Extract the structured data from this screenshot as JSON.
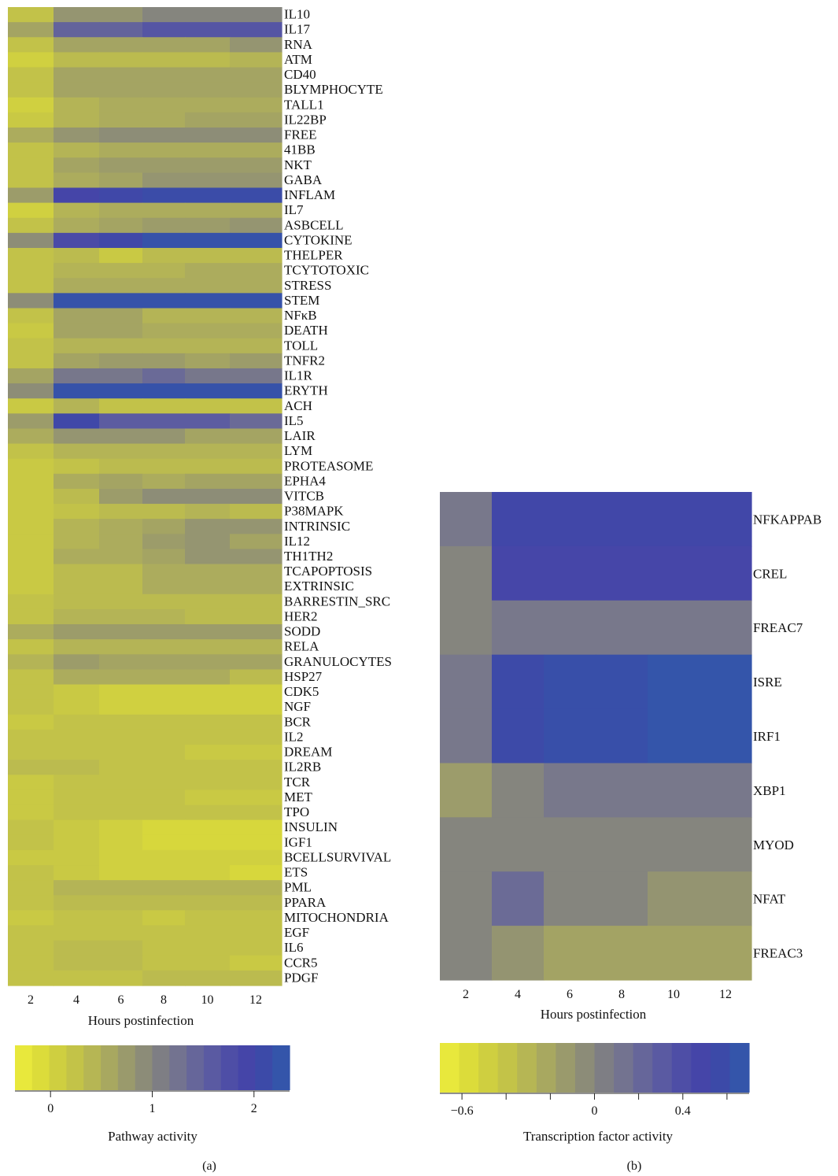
{
  "chart_data": [
    {
      "type": "heatmap",
      "panel_label": "(a)",
      "xlabel": "Hours postinfection",
      "x": [
        "2",
        "4",
        "6",
        "8",
        "10",
        "12"
      ],
      "colorbar": {
        "label": "Pathway activity",
        "range": [
          -0.35,
          2.35
        ],
        "ticks": [
          "0",
          "1",
          "2"
        ],
        "tick_values": [
          0,
          1,
          2
        ],
        "colors": [
          "#e8e83c",
          "#dcdc3a",
          "#cfcf40",
          "#c3c348",
          "#b6b654",
          "#a8a860",
          "#9a9a6c",
          "#8c8c78",
          "#7e7e84",
          "#737390",
          "#66669a",
          "#5a5aa2",
          "#4e4ea6",
          "#4545a8",
          "#3c4aa8",
          "#3455aa"
        ]
      },
      "rows": [
        {
          "name": "IL10",
          "values": [
            0.2,
            0.8,
            0.8,
            1.0,
            1.0,
            1.0
          ]
        },
        {
          "name": "IL17",
          "values": [
            0.6,
            1.5,
            1.5,
            1.7,
            1.7,
            1.7
          ]
        },
        {
          "name": "RNA",
          "values": [
            0.2,
            0.6,
            0.6,
            0.6,
            0.6,
            0.8
          ]
        },
        {
          "name": "ATM",
          "values": [
            0.0,
            0.3,
            0.3,
            0.3,
            0.3,
            0.4
          ]
        },
        {
          "name": "CD40",
          "values": [
            0.2,
            0.6,
            0.6,
            0.6,
            0.6,
            0.6
          ]
        },
        {
          "name": "BLYMPHOCYTE",
          "values": [
            0.2,
            0.6,
            0.6,
            0.6,
            0.6,
            0.6
          ]
        },
        {
          "name": "TALL1",
          "values": [
            0.0,
            0.4,
            0.5,
            0.5,
            0.5,
            0.5
          ]
        },
        {
          "name": "IL22BP",
          "values": [
            0.1,
            0.4,
            0.5,
            0.5,
            0.6,
            0.6
          ]
        },
        {
          "name": "FREE",
          "values": [
            0.5,
            0.8,
            0.9,
            0.9,
            0.9,
            0.9
          ]
        },
        {
          "name": "41BB",
          "values": [
            0.2,
            0.4,
            0.5,
            0.5,
            0.5,
            0.5
          ]
        },
        {
          "name": "NKT",
          "values": [
            0.2,
            0.6,
            0.7,
            0.7,
            0.7,
            0.7
          ]
        },
        {
          "name": "GABA",
          "values": [
            0.2,
            0.5,
            0.6,
            0.8,
            0.8,
            0.8
          ]
        },
        {
          "name": "INFLAM",
          "values": [
            0.7,
            2.0,
            2.1,
            2.2,
            2.2,
            2.2
          ]
        },
        {
          "name": "IL7",
          "values": [
            0.0,
            0.4,
            0.5,
            0.5,
            0.5,
            0.5
          ]
        },
        {
          "name": "ASBCELL",
          "values": [
            0.2,
            0.5,
            0.6,
            0.7,
            0.7,
            0.8
          ]
        },
        {
          "name": "CYTOKINE",
          "values": [
            0.9,
            1.9,
            2.1,
            2.3,
            2.3,
            2.3
          ]
        },
        {
          "name": "THELPER",
          "values": [
            0.2,
            0.3,
            0.1,
            0.3,
            0.3,
            0.3
          ]
        },
        {
          "name": "TCYTOTOXIC",
          "values": [
            0.2,
            0.4,
            0.4,
            0.4,
            0.5,
            0.5
          ]
        },
        {
          "name": "STRESS",
          "values": [
            0.2,
            0.5,
            0.5,
            0.5,
            0.5,
            0.5
          ]
        },
        {
          "name": "STEM",
          "values": [
            0.9,
            2.3,
            2.3,
            2.3,
            2.3,
            2.3
          ]
        },
        {
          "name": "NFκB",
          "values": [
            0.2,
            0.6,
            0.6,
            0.4,
            0.4,
            0.4
          ]
        },
        {
          "name": "DEATH",
          "values": [
            0.1,
            0.6,
            0.6,
            0.5,
            0.5,
            0.5
          ]
        },
        {
          "name": "TOLL",
          "values": [
            0.2,
            0.4,
            0.4,
            0.4,
            0.4,
            0.4
          ]
        },
        {
          "name": "TNFR2",
          "values": [
            0.2,
            0.6,
            0.7,
            0.7,
            0.6,
            0.7
          ]
        },
        {
          "name": "IL1R",
          "values": [
            0.6,
            1.2,
            1.2,
            1.4,
            1.2,
            1.2
          ]
        },
        {
          "name": "ERYTH",
          "values": [
            0.9,
            2.3,
            2.3,
            2.3,
            2.3,
            2.3
          ]
        },
        {
          "name": "ACH",
          "values": [
            0.1,
            0.4,
            0.2,
            0.2,
            0.2,
            0.2
          ]
        },
        {
          "name": "IL5",
          "values": [
            0.7,
            2.1,
            1.6,
            1.6,
            1.6,
            1.4
          ]
        },
        {
          "name": "LAIR",
          "values": [
            0.5,
            0.8,
            0.8,
            0.8,
            0.6,
            0.6
          ]
        },
        {
          "name": "LYM",
          "values": [
            0.2,
            0.4,
            0.4,
            0.4,
            0.4,
            0.4
          ]
        },
        {
          "name": "PROTEASOME",
          "values": [
            0.1,
            0.2,
            0.3,
            0.3,
            0.3,
            0.3
          ]
        },
        {
          "name": "EPHA4",
          "values": [
            0.1,
            0.5,
            0.6,
            0.5,
            0.6,
            0.6
          ]
        },
        {
          "name": "VITCB",
          "values": [
            0.1,
            0.3,
            0.7,
            0.9,
            0.9,
            0.9
          ]
        },
        {
          "name": "P38MAPK",
          "values": [
            0.1,
            0.2,
            0.3,
            0.3,
            0.4,
            0.3
          ]
        },
        {
          "name": "INTRINSIC",
          "values": [
            0.1,
            0.4,
            0.5,
            0.6,
            0.8,
            0.8
          ]
        },
        {
          "name": "IL12",
          "values": [
            0.1,
            0.4,
            0.5,
            0.7,
            0.8,
            0.6
          ]
        },
        {
          "name": "TH1TH2",
          "values": [
            0.1,
            0.5,
            0.5,
            0.6,
            0.8,
            0.8
          ]
        },
        {
          "name": "TCAPOPTOSIS",
          "values": [
            0.1,
            0.3,
            0.3,
            0.5,
            0.5,
            0.5
          ]
        },
        {
          "name": "EXTRINSIC",
          "values": [
            0.1,
            0.3,
            0.3,
            0.5,
            0.5,
            0.5
          ]
        },
        {
          "name": "BARRESTIN_SRC",
          "values": [
            0.2,
            0.3,
            0.3,
            0.3,
            0.3,
            0.3
          ]
        },
        {
          "name": "HER2",
          "values": [
            0.2,
            0.4,
            0.4,
            0.4,
            0.3,
            0.3
          ]
        },
        {
          "name": "SODD",
          "values": [
            0.5,
            0.7,
            0.7,
            0.7,
            0.7,
            0.7
          ]
        },
        {
          "name": "RELA",
          "values": [
            0.2,
            0.4,
            0.4,
            0.4,
            0.4,
            0.4
          ]
        },
        {
          "name": "GRANULOCYTES",
          "values": [
            0.4,
            0.7,
            0.6,
            0.6,
            0.6,
            0.6
          ]
        },
        {
          "name": "HSP27",
          "values": [
            0.2,
            0.5,
            0.5,
            0.5,
            0.5,
            0.3
          ]
        },
        {
          "name": "CDK5",
          "values": [
            0.2,
            0.1,
            0.0,
            0.0,
            0.0,
            0.0
          ]
        },
        {
          "name": "NGF",
          "values": [
            0.2,
            0.1,
            0.0,
            0.0,
            0.0,
            0.0
          ]
        },
        {
          "name": "BCR",
          "values": [
            0.1,
            0.2,
            0.2,
            0.2,
            0.2,
            0.2
          ]
        },
        {
          "name": "IL2",
          "values": [
            0.2,
            0.2,
            0.2,
            0.2,
            0.2,
            0.2
          ]
        },
        {
          "name": "DREAM",
          "values": [
            0.2,
            0.2,
            0.2,
            0.2,
            0.1,
            0.1
          ]
        },
        {
          "name": "IL2RB",
          "values": [
            0.3,
            0.3,
            0.2,
            0.2,
            0.2,
            0.2
          ]
        },
        {
          "name": "TCR",
          "values": [
            0.1,
            0.2,
            0.2,
            0.2,
            0.2,
            0.2
          ]
        },
        {
          "name": "MET",
          "values": [
            0.1,
            0.2,
            0.2,
            0.2,
            0.1,
            0.1
          ]
        },
        {
          "name": "TPO",
          "values": [
            0.1,
            0.2,
            0.2,
            0.2,
            0.2,
            0.2
          ]
        },
        {
          "name": "INSULIN",
          "values": [
            0.2,
            0.1,
            0.0,
            -0.1,
            -0.1,
            -0.1
          ]
        },
        {
          "name": "IGF1",
          "values": [
            0.2,
            0.1,
            0.0,
            -0.1,
            -0.1,
            -0.1
          ]
        },
        {
          "name": "BCELLSURVIVAL",
          "values": [
            0.1,
            0.1,
            0.0,
            0.0,
            0.0,
            0.0
          ]
        },
        {
          "name": "ETS",
          "values": [
            0.2,
            0.1,
            0.0,
            0.0,
            0.0,
            -0.1
          ]
        },
        {
          "name": "PML",
          "values": [
            0.2,
            0.4,
            0.4,
            0.4,
            0.4,
            0.4
          ]
        },
        {
          "name": "PPARA",
          "values": [
            0.2,
            0.3,
            0.3,
            0.3,
            0.3,
            0.3
          ]
        },
        {
          "name": "MITOCHONDRIA",
          "values": [
            0.1,
            0.2,
            0.2,
            0.1,
            0.2,
            0.2
          ]
        },
        {
          "name": "EGF",
          "values": [
            0.2,
            0.2,
            0.2,
            0.2,
            0.2,
            0.2
          ]
        },
        {
          "name": "IL6",
          "values": [
            0.2,
            0.3,
            0.3,
            0.2,
            0.2,
            0.2
          ]
        },
        {
          "name": "CCR5",
          "values": [
            0.2,
            0.3,
            0.3,
            0.2,
            0.2,
            0.1
          ]
        },
        {
          "name": "PDGF",
          "values": [
            0.2,
            0.2,
            0.2,
            0.3,
            0.3,
            0.3
          ]
        }
      ]
    },
    {
      "type": "heatmap",
      "panel_label": "(b)",
      "xlabel": "Hours postinfection",
      "x": [
        "2",
        "4",
        "6",
        "8",
        "10",
        "12"
      ],
      "colorbar": {
        "label": "Transcription factor activity",
        "range": [
          -0.7,
          0.7
        ],
        "ticks": [
          "−0.6",
          "0",
          "0.4"
        ],
        "tick_values": [
          -0.6,
          0,
          0.4
        ],
        "minor_ticks": [
          -0.6,
          -0.4,
          -0.2,
          0,
          0.2,
          0.4,
          0.6
        ],
        "colors": [
          "#e8e83c",
          "#dcdc3a",
          "#cfcf40",
          "#c3c348",
          "#b6b654",
          "#a8a860",
          "#9a9a6c",
          "#8c8c78",
          "#7e7e84",
          "#737390",
          "#66669a",
          "#5a5aa2",
          "#4e4ea6",
          "#4545a8",
          "#3c4aa8",
          "#3455aa"
        ]
      },
      "rows": [
        {
          "name": "NFKAPPAB",
          "values": [
            0.1,
            0.55,
            0.55,
            0.55,
            0.55,
            0.55
          ]
        },
        {
          "name": "CREL",
          "values": [
            0.0,
            0.5,
            0.5,
            0.5,
            0.5,
            0.5
          ]
        },
        {
          "name": "FREAC7",
          "values": [
            0.0,
            0.1,
            0.1,
            0.1,
            0.1,
            0.1
          ]
        },
        {
          "name": "ISRE",
          "values": [
            0.1,
            0.6,
            0.65,
            0.65,
            0.7,
            0.7
          ]
        },
        {
          "name": "IRF1",
          "values": [
            0.1,
            0.6,
            0.65,
            0.65,
            0.7,
            0.7
          ]
        },
        {
          "name": "XBP1",
          "values": [
            -0.15,
            0.0,
            0.1,
            0.1,
            0.1,
            0.1
          ]
        },
        {
          "name": "MYOD",
          "values": [
            0.0,
            0.0,
            0.0,
            0.0,
            0.0,
            0.0
          ]
        },
        {
          "name": "NFAT",
          "values": [
            0.0,
            0.2,
            0.0,
            0.0,
            -0.1,
            -0.1
          ]
        },
        {
          "name": "FREAC3",
          "values": [
            0.0,
            -0.1,
            -0.2,
            -0.2,
            -0.2,
            -0.2
          ]
        }
      ]
    }
  ]
}
